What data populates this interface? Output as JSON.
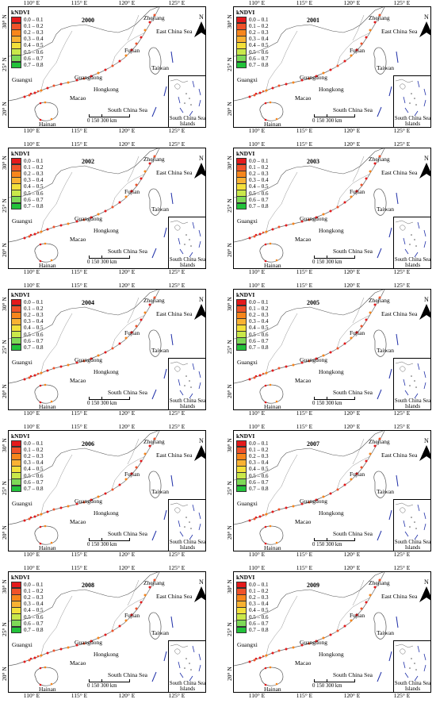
{
  "legend": {
    "title": "kNDVI",
    "classes": [
      {
        "label": "0.0 – 0.1",
        "color": "#e41a1c"
      },
      {
        "label": "0.1 – 0.2",
        "color": "#f0522a"
      },
      {
        "label": "0.2 – 0.3",
        "color": "#f7861c"
      },
      {
        "label": "0.3 – 0.4",
        "color": "#f9b233"
      },
      {
        "label": "0.4 – 0.5",
        "color": "#f3e03b"
      },
      {
        "label": "0.5 – 0.6",
        "color": "#c9e84a"
      },
      {
        "label": "0.6 – 0.7",
        "color": "#7ed957"
      },
      {
        "label": "0.7 – 0.8",
        "color": "#22c23a"
      }
    ]
  },
  "longitude_ticks": [
    "110° E",
    "115° E",
    "120° E",
    "125° E"
  ],
  "latitude_ticks": [
    "30° N",
    "25° N",
    "20° N"
  ],
  "place_labels": {
    "zhejiang": "Zhejiang",
    "east_china_sea": "East China Sea",
    "fujian": "Fujian",
    "guangxi": "Guangxi",
    "guangdong": "Guangdong",
    "taiwan": "Taiwan",
    "hongkong": "Hongkong",
    "macao": "Macao",
    "south_china_sea": "South China Sea",
    "hainan": "Hainan"
  },
  "north_arrow": "N",
  "scale_bar": "0   150   300 km",
  "inset_label": "South China Sea Islands",
  "panels": [
    {
      "year": "2000"
    },
    {
      "year": "2001"
    },
    {
      "year": "2002"
    },
    {
      "year": "2003"
    },
    {
      "year": "2004"
    },
    {
      "year": "2005"
    },
    {
      "year": "2006"
    },
    {
      "year": "2007"
    },
    {
      "year": "2008"
    },
    {
      "year": "2009"
    }
  ]
}
